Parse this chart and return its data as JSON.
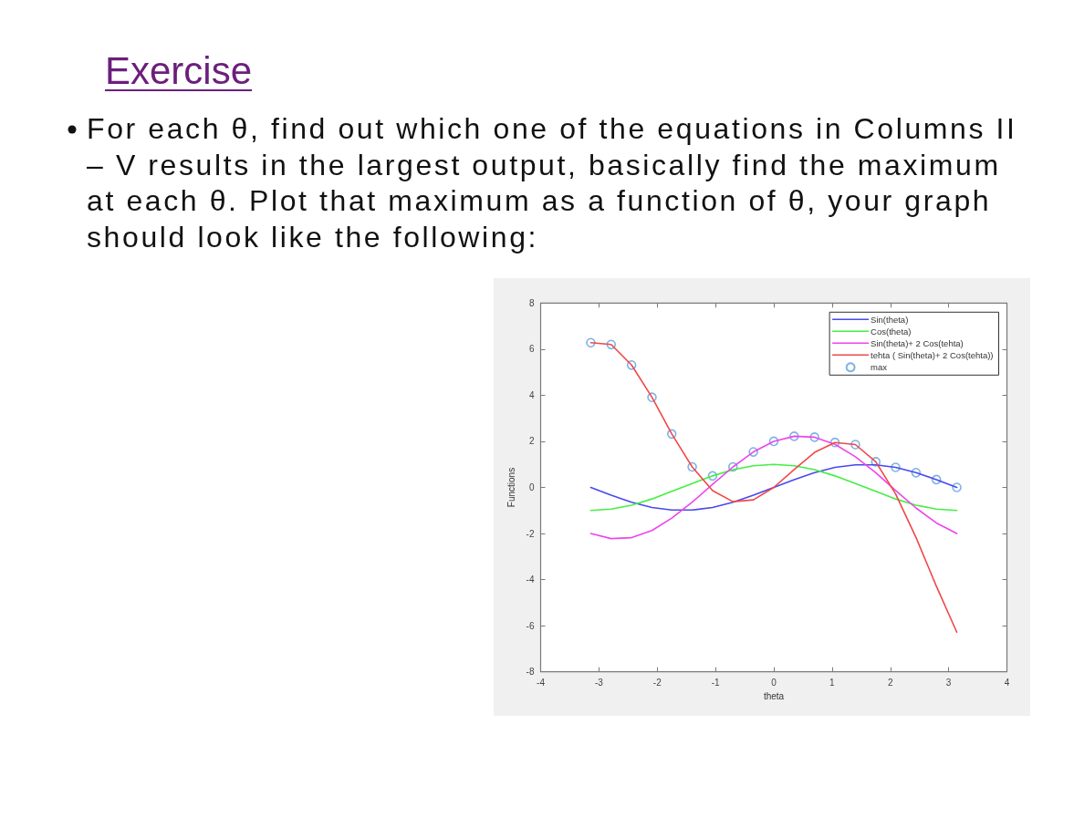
{
  "chart_data": {
    "type": "line",
    "title": "Exercise",
    "subtitle": "For each θ, find out which one of the equations in Columns II – V results in the largest output, basically find the maximum at each θ. Plot that maximum as a function of θ, your graph should look like the following:",
    "xlabel": "theta",
    "ylabel": "Functions",
    "x": [
      -3.14,
      -2.79,
      -2.44,
      -2.09,
      -1.75,
      -1.4,
      -1.05,
      -0.7,
      -0.35,
      0,
      0.35,
      0.7,
      1.05,
      1.4,
      1.75,
      2.09,
      2.44,
      2.79,
      3.14
    ],
    "series": [
      {
        "name": "Sin(theta)",
        "color": "#4848f0",
        "values": [
          0,
          -0.34,
          -0.64,
          -0.87,
          -0.98,
          -0.98,
          -0.87,
          -0.64,
          -0.34,
          0,
          0.34,
          0.64,
          0.87,
          0.98,
          0.98,
          0.87,
          0.64,
          0.34,
          0
        ]
      },
      {
        "name": "Cos(theta)",
        "color": "#44ee44",
        "values": [
          -1,
          -0.94,
          -0.77,
          -0.5,
          -0.17,
          0.17,
          0.5,
          0.77,
          0.94,
          1,
          0.94,
          0.77,
          0.5,
          0.17,
          -0.17,
          -0.5,
          -0.77,
          -0.94,
          -1
        ]
      },
      {
        "name": "Sin(theta)+ 2 Cos(tehta)",
        "color": "#ee44ee",
        "values": [
          -2,
          -2.22,
          -2.18,
          -1.87,
          -1.33,
          -0.64,
          0.13,
          0.89,
          1.54,
          2,
          2.22,
          2.18,
          1.87,
          1.33,
          0.64,
          -0.13,
          -0.89,
          -1.54,
          -2
        ]
      },
      {
        "name": "tehta ( Sin(theta)+ 2 Cos(tehta))",
        "color": "#f04848",
        "values": [
          6.28,
          6.2,
          5.31,
          3.91,
          2.32,
          0.89,
          -0.14,
          -0.62,
          -0.54,
          0,
          0.78,
          1.52,
          1.95,
          1.86,
          1.11,
          -0.28,
          -2.17,
          -4.29,
          -6.28
        ]
      },
      {
        "name": "max",
        "type": "scatter",
        "marker": "circle",
        "color": "#5b9fe0",
        "values": [
          6.28,
          6.2,
          5.31,
          3.91,
          2.32,
          0.89,
          0.5,
          0.89,
          1.54,
          2,
          2.22,
          2.18,
          1.95,
          1.86,
          1.11,
          0.87,
          0.64,
          0.34,
          0
        ]
      }
    ],
    "xlim": [
      -4,
      4
    ],
    "xticks": [
      -4,
      -3,
      -2,
      -1,
      0,
      1,
      2,
      3,
      4
    ],
    "ylim": [
      -8,
      8
    ],
    "yticks": [
      -8,
      -6,
      -4,
      -2,
      0,
      2,
      4,
      6,
      8
    ],
    "legend": "top right",
    "marker": "none"
  }
}
